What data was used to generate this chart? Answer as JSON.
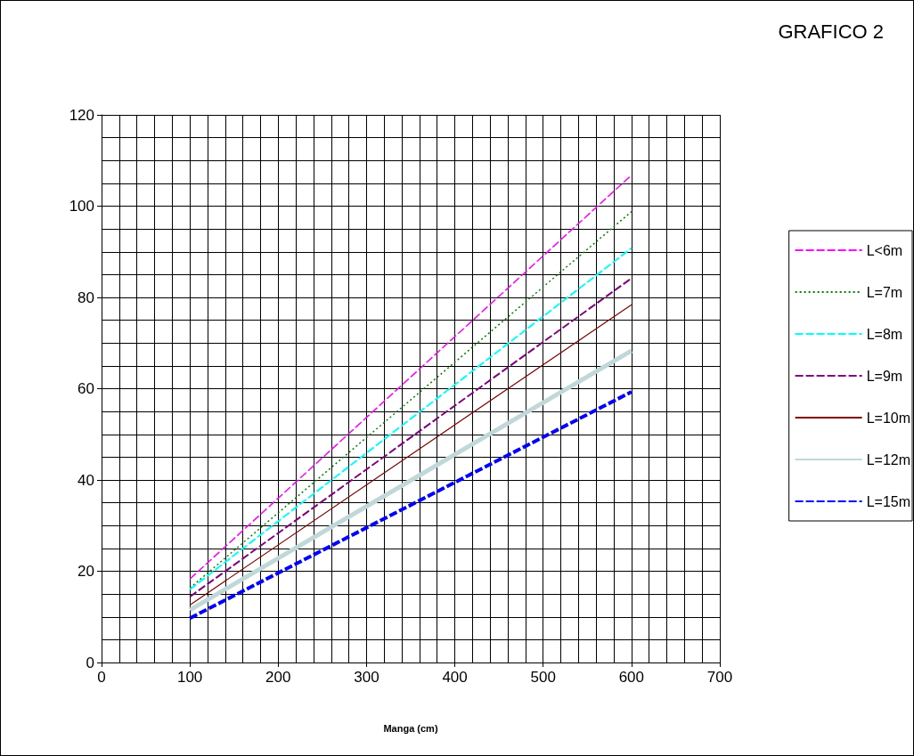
{
  "chart_data": {
    "type": "line",
    "title": "GRAFICO 2",
    "xlabel": "Manga (cm)",
    "xlim": [
      0,
      700
    ],
    "xticks": [
      0,
      100,
      200,
      300,
      400,
      500,
      600,
      700
    ],
    "ylim": [
      0,
      120
    ],
    "yticks": [
      0,
      20,
      40,
      60,
      80,
      100,
      120
    ],
    "grid": true,
    "legend": "right",
    "marker": "none",
    "x": [
      100,
      600
    ],
    "series": [
      {
        "name": "L<6m",
        "color": "#ff00ff",
        "line_style": "dashed",
        "values": [
          18.3,
          106.8
        ]
      },
      {
        "name": "L=7m",
        "color": "#008000",
        "line_style": "dotted",
        "values": [
          16.3,
          98.8
        ]
      },
      {
        "name": "L=8m",
        "color": "#00ffff",
        "line_style": "dashed",
        "values": [
          16,
          90.8
        ]
      },
      {
        "name": "L=9m",
        "color": "#800080",
        "line_style": "dashed",
        "values": [
          14.4,
          84.2
        ]
      },
      {
        "name": "L=10m",
        "color": "#800000",
        "line_style": "solid",
        "values": [
          12.6,
          78.4
        ]
      },
      {
        "name": "L=12m",
        "color": "#c0d8d8",
        "line_style": "solid",
        "values": [
          11.5,
          68.3
        ]
      },
      {
        "name": "L=15m",
        "color": "#0000ff",
        "line_style": "dashed",
        "values": [
          9.7,
          59.3
        ]
      }
    ]
  }
}
